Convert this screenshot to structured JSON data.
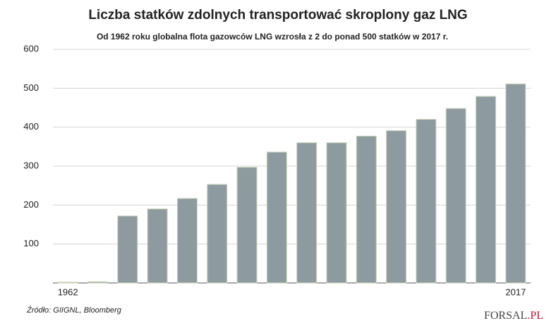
{
  "chart_data": {
    "type": "bar",
    "title": "Liczba statków zdolnych transportować skroplony gaz LNG",
    "subtitle": "Od 1962 roku globalna flota gazowców LNG wzrosła z 2 do ponad 500 statków w 2017 r.",
    "categories": [
      "1962",
      null,
      null,
      null,
      null,
      null,
      null,
      null,
      null,
      null,
      null,
      null,
      null,
      null,
      null,
      "2017"
    ],
    "values": [
      2,
      3,
      172,
      190,
      217,
      253,
      297,
      336,
      360,
      360,
      377,
      391,
      420,
      448,
      479,
      511
    ],
    "color": "#8d9ba1",
    "ylim": [
      0,
      600
    ],
    "yticks": [
      100,
      200,
      300,
      400,
      500,
      600
    ],
    "grid": true,
    "source": "Źródło: GIIGNL, Bloomberg"
  },
  "logo": {
    "main": "FORSAL",
    "suffix": ".PL"
  }
}
